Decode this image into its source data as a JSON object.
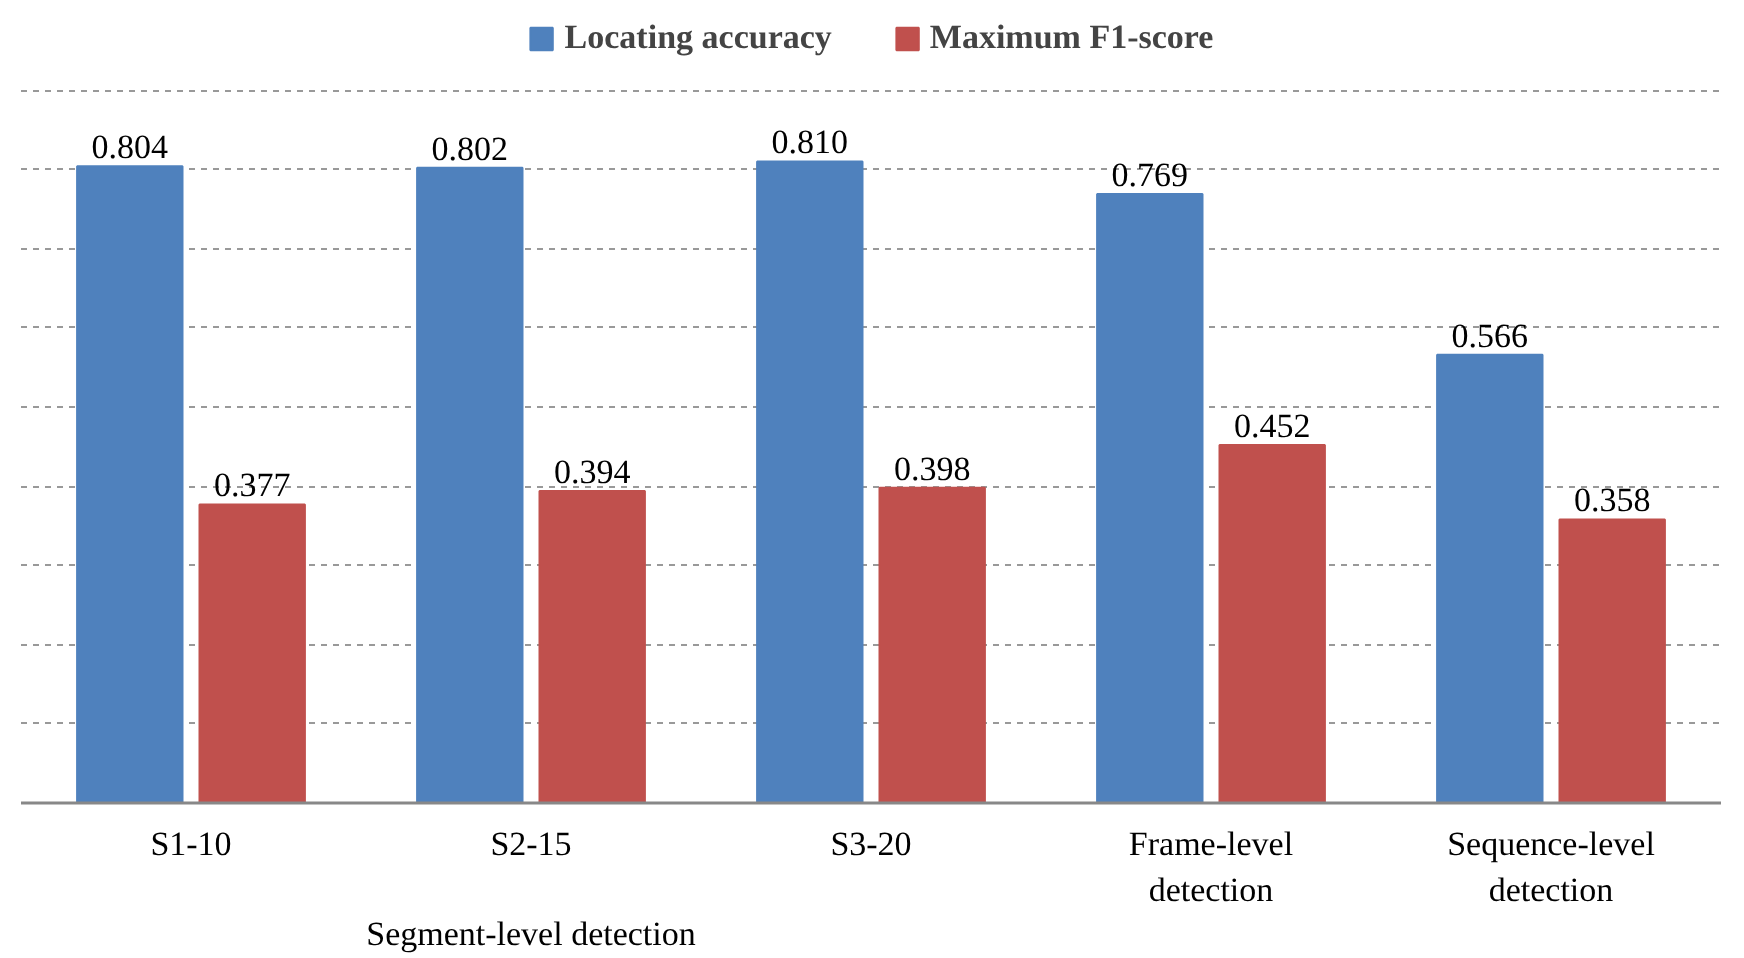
{
  "chart_data": {
    "type": "bar",
    "categories": [
      "S1-10",
      "S2-15",
      "S3-20",
      "Frame-level\ndetection",
      "Sequence-level\ndetection"
    ],
    "series": [
      {
        "name": "Locating accuracy",
        "color": "#4f81bd",
        "values": [
          0.804,
          0.802,
          0.81,
          0.769,
          0.566
        ],
        "value_labels": [
          "0.804",
          "0.802",
          "0.810",
          "0.769",
          "0.566"
        ]
      },
      {
        "name": "Maximum F1-score",
        "color": "#c0504d",
        "values": [
          0.377,
          0.394,
          0.398,
          0.452,
          0.358
        ],
        "value_labels": [
          "0.377",
          "0.394",
          "0.398",
          "0.452",
          "0.358"
        ]
      }
    ],
    "yticks": [
      {
        "value": 0.1,
        "label": null
      },
      {
        "value": 0.2,
        "label": null
      },
      {
        "value": 0.3,
        "label": null
      },
      {
        "value": 0.4,
        "label": null
      },
      {
        "value": 0.5,
        "label": null
      },
      {
        "value": 0.6,
        "label": null
      },
      {
        "value": 0.7,
        "label": null
      },
      {
        "value": 0.8,
        "label": null
      },
      {
        "value": 0.9,
        "label": null
      }
    ],
    "tick_labels": "x",
    "grid": "y",
    "legend": "top",
    "annotations": [
      "Segment-level detection"
    ]
  }
}
